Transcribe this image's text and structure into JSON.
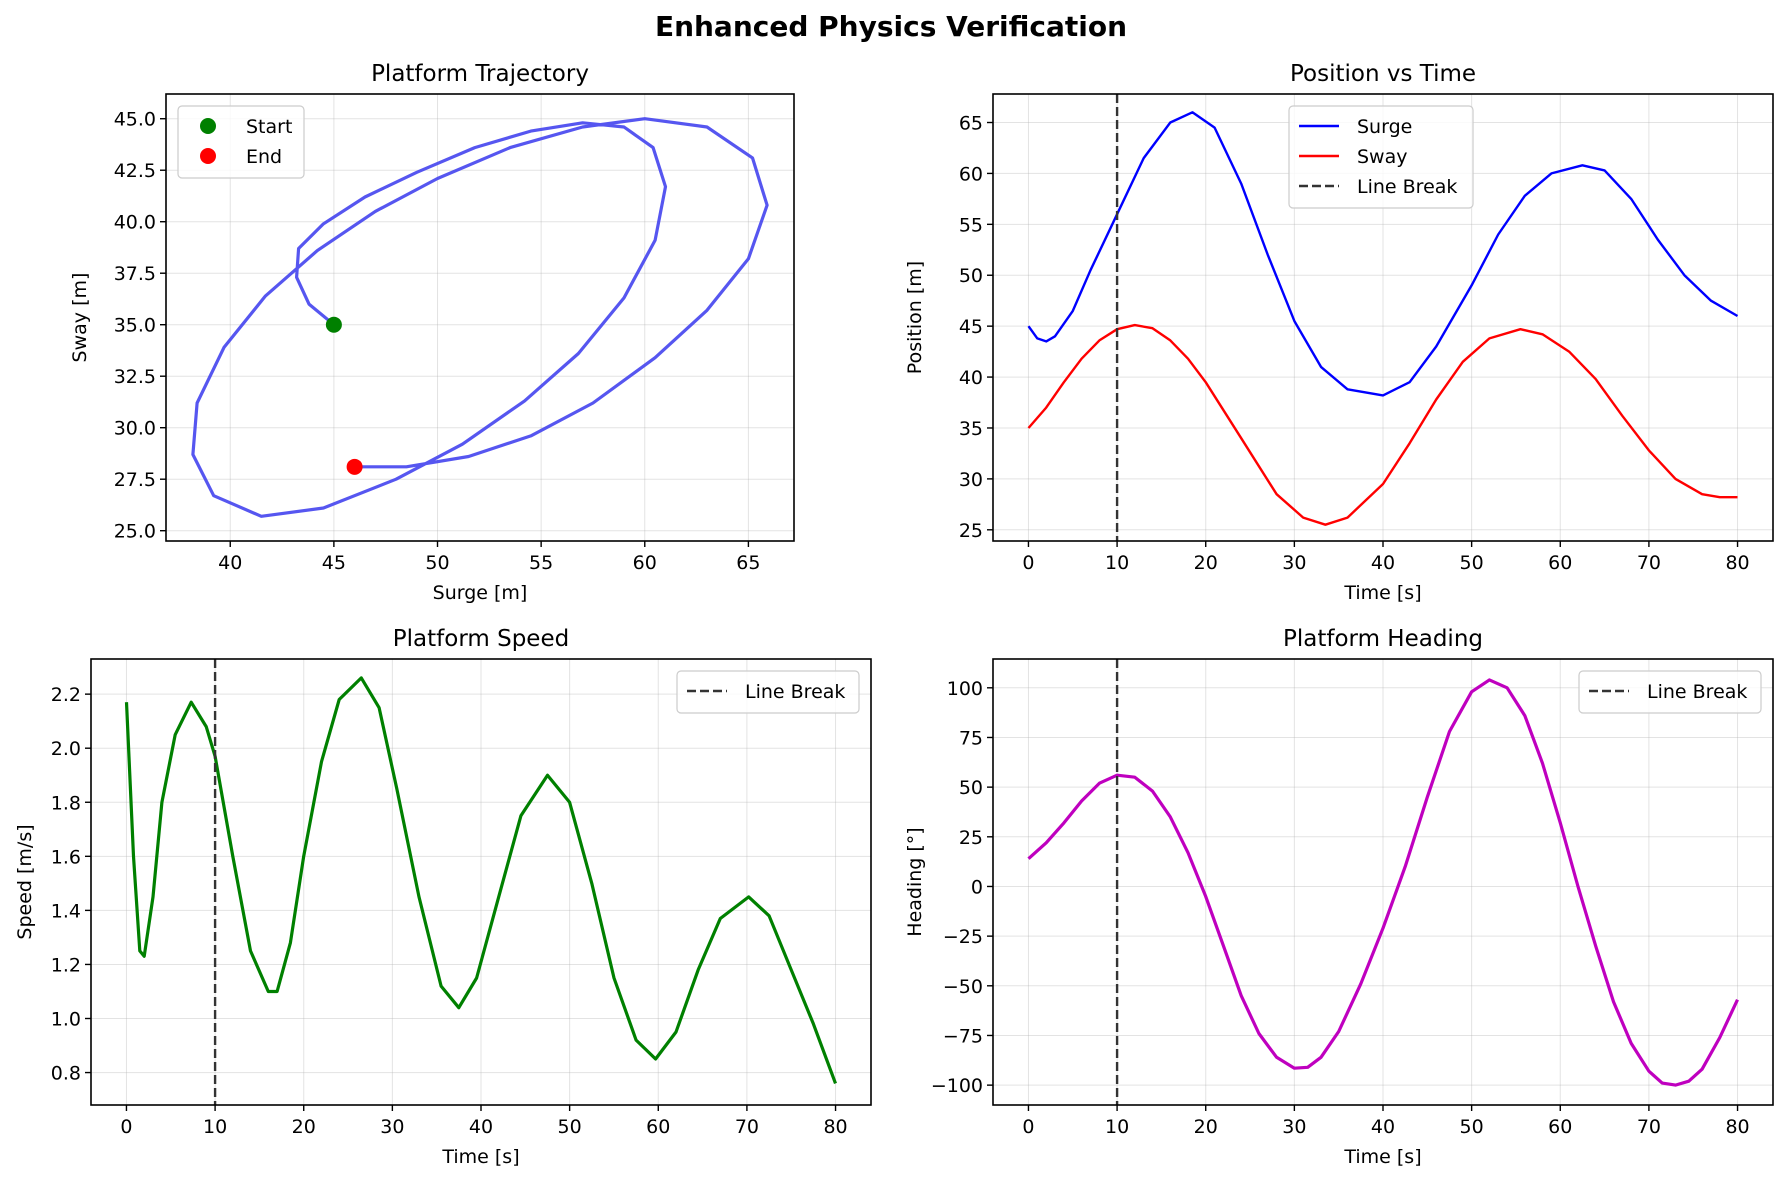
{
  "suptitle": "Enhanced Physics Verification",
  "chart_data": [
    {
      "type": "line",
      "id": "trajectory",
      "title": "Platform Trajectory",
      "xlabel": "Surge [m]",
      "ylabel": "Sway [m]",
      "xlim": [
        36.9,
        67.2
      ],
      "ylim": [
        24.5,
        46.2
      ],
      "xticks": [
        40,
        45,
        50,
        55,
        60,
        65
      ],
      "yticks": [
        25.0,
        27.5,
        30.0,
        32.5,
        35.0,
        37.5,
        40.0,
        42.5,
        45.0
      ],
      "ytick_decimals": 1,
      "grid": true,
      "legend": {
        "placement": "upper-left",
        "entries": [
          {
            "label": "Start",
            "marker": "circle",
            "color": "#008000"
          },
          {
            "label": "End",
            "marker": "circle",
            "color": "#ff0000"
          }
        ]
      },
      "series": [
        {
          "name": "trajectory",
          "color": "#4444ee",
          "width": 3.2,
          "points": [
            [
              45,
              35
            ],
            [
              43.8,
              36
            ],
            [
              43.2,
              37.3
            ],
            [
              43.3,
              38.7
            ],
            [
              44.5,
              39.9
            ],
            [
              46.5,
              41.2
            ],
            [
              49,
              42.4
            ],
            [
              51.8,
              43.6
            ],
            [
              54.5,
              44.4
            ],
            [
              57,
              44.8
            ],
            [
              59,
              44.6
            ],
            [
              60.4,
              43.6
            ],
            [
              61,
              41.7
            ],
            [
              60.5,
              39.1
            ],
            [
              59,
              36.3
            ],
            [
              56.8,
              33.6
            ],
            [
              54.2,
              31.3
            ],
            [
              51.2,
              29.2
            ],
            [
              48,
              27.5
            ],
            [
              44.5,
              26.1
            ],
            [
              41.5,
              25.7
            ],
            [
              39.2,
              26.7
            ],
            [
              38.2,
              28.7
            ],
            [
              38.4,
              31.2
            ],
            [
              39.7,
              33.9
            ],
            [
              41.7,
              36.4
            ],
            [
              44.2,
              38.6
            ],
            [
              47,
              40.5
            ],
            [
              50,
              42.1
            ],
            [
              53.5,
              43.6
            ],
            [
              57,
              44.6
            ],
            [
              60,
              45
            ],
            [
              63,
              44.6
            ],
            [
              65.2,
              43.1
            ],
            [
              65.9,
              40.8
            ],
            [
              65,
              38.2
            ],
            [
              63,
              35.7
            ],
            [
              60.5,
              33.4
            ],
            [
              57.5,
              31.2
            ],
            [
              54.5,
              29.6
            ],
            [
              51.5,
              28.6
            ],
            [
              48.5,
              28.1
            ],
            [
              47,
              28.1
            ],
            [
              46,
              28.1
            ]
          ]
        },
        {
          "name": "Start",
          "type": "scatter",
          "color": "#008000",
          "points": [
            [
              45,
              35
            ]
          ]
        },
        {
          "name": "End",
          "type": "scatter",
          "color": "#ff0000",
          "points": [
            [
              46,
              28.1
            ]
          ]
        }
      ]
    },
    {
      "type": "line",
      "id": "position",
      "title": "Position vs Time",
      "xlabel": "Time [s]",
      "ylabel": "Position [m]",
      "xlim": [
        -4,
        84
      ],
      "ylim": [
        23.9,
        67.8
      ],
      "xticks": [
        0,
        10,
        20,
        30,
        40,
        50,
        60,
        70,
        80
      ],
      "yticks": [
        25,
        30,
        35,
        40,
        45,
        50,
        55,
        60,
        65
      ],
      "ytick_decimals": 0,
      "grid": true,
      "vline": {
        "x": 10,
        "color": "#333333",
        "label": "Line Break"
      },
      "legend": {
        "placement": "upper-center",
        "entries": [
          {
            "label": "Surge",
            "marker": "line",
            "color": "#0000ff"
          },
          {
            "label": "Sway",
            "marker": "line",
            "color": "#ff0000"
          },
          {
            "label": "Line Break",
            "marker": "dash",
            "color": "#333333"
          }
        ]
      },
      "series": [
        {
          "name": "Surge",
          "color": "#0000ff",
          "width": 2.4,
          "points": [
            [
              0,
              45
            ],
            [
              1,
              43.8
            ],
            [
              2,
              43.5
            ],
            [
              3,
              44
            ],
            [
              5,
              46.5
            ],
            [
              7,
              50.5
            ],
            [
              10,
              56
            ],
            [
              13,
              61.5
            ],
            [
              16,
              65
            ],
            [
              18.5,
              66
            ],
            [
              21,
              64.5
            ],
            [
              24,
              59
            ],
            [
              27,
              52
            ],
            [
              30,
              45.5
            ],
            [
              33,
              41
            ],
            [
              36,
              38.8
            ],
            [
              40,
              38.2
            ],
            [
              43,
              39.5
            ],
            [
              46,
              43
            ],
            [
              50,
              49
            ],
            [
              53,
              54
            ],
            [
              56,
              57.8
            ],
            [
              59,
              60
            ],
            [
              62.5,
              60.8
            ],
            [
              65,
              60.3
            ],
            [
              68,
              57.5
            ],
            [
              71,
              53.5
            ],
            [
              74,
              50
            ],
            [
              77,
              47.5
            ],
            [
              80,
              46
            ]
          ]
        },
        {
          "name": "Sway",
          "color": "#ff0000",
          "width": 2.4,
          "points": [
            [
              0,
              35
            ],
            [
              2,
              37
            ],
            [
              4,
              39.5
            ],
            [
              6,
              41.8
            ],
            [
              8,
              43.6
            ],
            [
              10,
              44.7
            ],
            [
              12,
              45.1
            ],
            [
              14,
              44.8
            ],
            [
              16,
              43.6
            ],
            [
              18,
              41.8
            ],
            [
              20,
              39.5
            ],
            [
              24,
              34
            ],
            [
              28,
              28.5
            ],
            [
              31,
              26.2
            ],
            [
              33.5,
              25.5
            ],
            [
              36,
              26.2
            ],
            [
              40,
              29.5
            ],
            [
              43,
              33.5
            ],
            [
              46,
              37.8
            ],
            [
              49,
              41.5
            ],
            [
              52,
              43.8
            ],
            [
              55.5,
              44.7
            ],
            [
              58,
              44.2
            ],
            [
              61,
              42.5
            ],
            [
              64,
              39.8
            ],
            [
              67,
              36.2
            ],
            [
              70,
              32.8
            ],
            [
              73,
              30
            ],
            [
              76,
              28.5
            ],
            [
              78,
              28.2
            ],
            [
              80,
              28.2
            ]
          ]
        }
      ]
    },
    {
      "type": "line",
      "id": "speed",
      "title": "Platform Speed",
      "xlabel": "Time [s]",
      "ylabel": "Speed [m/s]",
      "xlim": [
        -4,
        84
      ],
      "ylim": [
        0.68,
        2.33
      ],
      "xticks": [
        0,
        10,
        20,
        30,
        40,
        50,
        60,
        70,
        80
      ],
      "yticks": [
        0.8,
        1.0,
        1.2,
        1.4,
        1.6,
        1.8,
        2.0,
        2.2
      ],
      "ytick_decimals": 1,
      "grid": true,
      "vline": {
        "x": 10,
        "color": "#333333",
        "label": "Line Break"
      },
      "legend": {
        "placement": "upper-right",
        "entries": [
          {
            "label": "Line Break",
            "marker": "dash",
            "color": "#333333"
          }
        ]
      },
      "series": [
        {
          "name": "Speed",
          "color": "#008000",
          "width": 3.2,
          "points": [
            [
              0,
              2.17
            ],
            [
              0.8,
              1.6
            ],
            [
              1.5,
              1.25
            ],
            [
              2,
              1.23
            ],
            [
              3,
              1.45
            ],
            [
              4,
              1.8
            ],
            [
              5.5,
              2.05
            ],
            [
              7.3,
              2.17
            ],
            [
              9,
              2.08
            ],
            [
              10,
              1.97
            ],
            [
              12,
              1.6
            ],
            [
              14,
              1.25
            ],
            [
              16,
              1.1
            ],
            [
              17,
              1.1
            ],
            [
              18.5,
              1.28
            ],
            [
              20,
              1.6
            ],
            [
              22,
              1.95
            ],
            [
              24,
              2.18
            ],
            [
              26.5,
              2.26
            ],
            [
              28.5,
              2.15
            ],
            [
              30.5,
              1.85
            ],
            [
              33,
              1.45
            ],
            [
              35.5,
              1.12
            ],
            [
              37.5,
              1.04
            ],
            [
              39.5,
              1.15
            ],
            [
              42,
              1.45
            ],
            [
              44.5,
              1.75
            ],
            [
              47.5,
              1.9
            ],
            [
              50,
              1.8
            ],
            [
              52.5,
              1.5
            ],
            [
              55,
              1.15
            ],
            [
              57.5,
              0.92
            ],
            [
              59.7,
              0.85
            ],
            [
              62,
              0.95
            ],
            [
              64.5,
              1.18
            ],
            [
              67,
              1.37
            ],
            [
              70.2,
              1.45
            ],
            [
              72.5,
              1.38
            ],
            [
              75,
              1.18
            ],
            [
              77.5,
              0.98
            ],
            [
              80,
              0.76
            ]
          ]
        }
      ]
    },
    {
      "type": "line",
      "id": "heading",
      "title": "Platform Heading",
      "xlabel": "Time [s]",
      "ylabel": "Heading [°]",
      "xlim": [
        -4,
        84
      ],
      "ylim": [
        -110,
        114.5
      ],
      "xticks": [
        0,
        10,
        20,
        30,
        40,
        50,
        60,
        70,
        80
      ],
      "yticks": [
        -100,
        -75,
        -50,
        -25,
        0,
        25,
        50,
        75,
        100
      ],
      "ytick_decimals": 0,
      "grid": true,
      "vline": {
        "x": 10,
        "color": "#333333",
        "label": "Line Break"
      },
      "legend": {
        "placement": "upper-right",
        "entries": [
          {
            "label": "Line Break",
            "marker": "dash",
            "color": "#333333"
          }
        ]
      },
      "series": [
        {
          "name": "Heading",
          "color": "#bf00bf",
          "width": 3.2,
          "points": [
            [
              0,
              14
            ],
            [
              2,
              22
            ],
            [
              4,
              32
            ],
            [
              6,
              43
            ],
            [
              8,
              52
            ],
            [
              10,
              56
            ],
            [
              12,
              55
            ],
            [
              14,
              48
            ],
            [
              16,
              35
            ],
            [
              18,
              17
            ],
            [
              20,
              -5
            ],
            [
              22,
              -30
            ],
            [
              24,
              -55
            ],
            [
              26,
              -74
            ],
            [
              28,
              -86
            ],
            [
              30,
              -91.5
            ],
            [
              31.5,
              -91
            ],
            [
              33,
              -86
            ],
            [
              35,
              -73
            ],
            [
              37.5,
              -49
            ],
            [
              40,
              -21
            ],
            [
              42.5,
              10
            ],
            [
              45,
              45
            ],
            [
              47.5,
              78
            ],
            [
              50,
              98
            ],
            [
              52,
              104
            ],
            [
              54,
              100
            ],
            [
              56,
              86
            ],
            [
              58,
              62
            ],
            [
              60,
              32
            ],
            [
              62,
              0
            ],
            [
              64,
              -30
            ],
            [
              66,
              -58
            ],
            [
              68,
              -79
            ],
            [
              70,
              -93
            ],
            [
              71.5,
              -99
            ],
            [
              73,
              -100
            ],
            [
              74.5,
              -98
            ],
            [
              76,
              -92
            ],
            [
              78,
              -76
            ],
            [
              80,
              -57
            ]
          ]
        }
      ]
    }
  ]
}
